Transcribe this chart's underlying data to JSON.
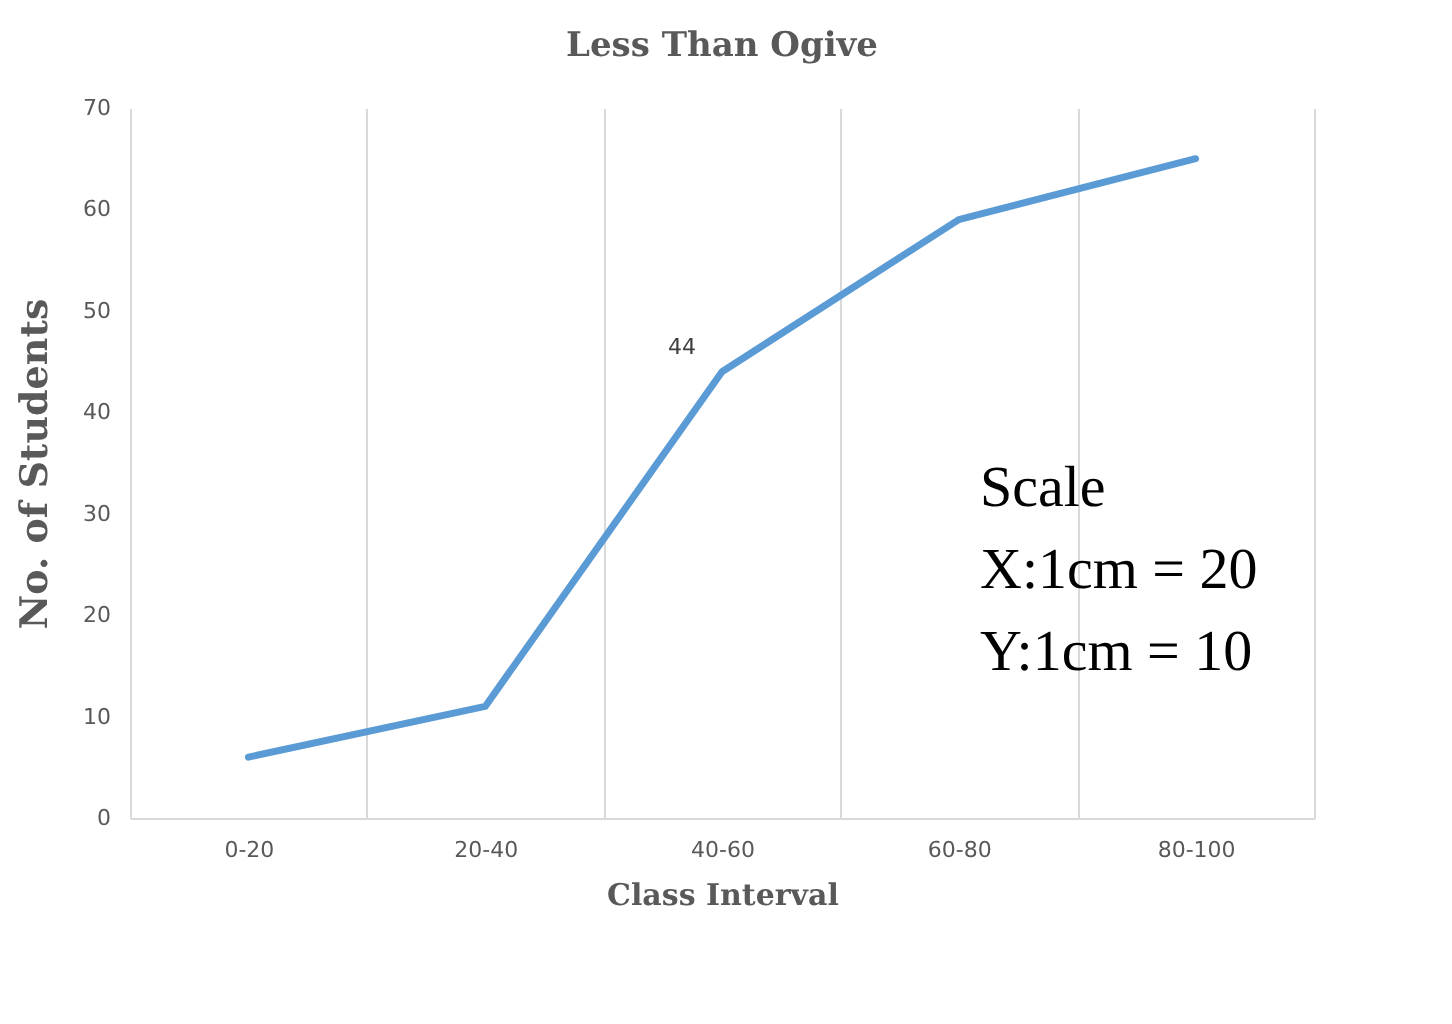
{
  "chart_data": {
    "type": "line",
    "title": "Less Than Ogive",
    "xlabel": "Class Interval",
    "ylabel": "No. of Students",
    "categories": [
      "0-20",
      "20-40",
      "40-60",
      "60-80",
      "80-100"
    ],
    "series": [
      {
        "color": "#5b9bd5",
        "values": [
          6,
          11,
          44,
          59,
          65
        ],
        "value_labels": [
          null,
          null,
          "44",
          null,
          null
        ]
      }
    ],
    "ylim": [
      0,
      70
    ],
    "yticks": [
      0,
      10,
      20,
      30,
      40,
      50,
      60,
      70
    ],
    "grid": "x",
    "marker": "none",
    "line_style": "solid",
    "annotations": [
      "Scale",
      "X:1cm = 20",
      "Y:1cm = 10"
    ]
  }
}
